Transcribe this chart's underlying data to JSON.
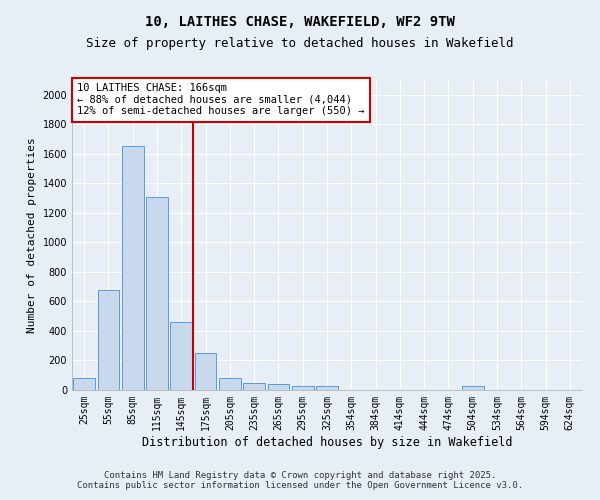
{
  "title": "10, LAITHES CHASE, WAKEFIELD, WF2 9TW",
  "subtitle": "Size of property relative to detached houses in Wakefield",
  "xlabel": "Distribution of detached houses by size in Wakefield",
  "ylabel": "Number of detached properties",
  "bar_labels": [
    "25sqm",
    "55sqm",
    "85sqm",
    "115sqm",
    "145sqm",
    "175sqm",
    "205sqm",
    "235sqm",
    "265sqm",
    "295sqm",
    "325sqm",
    "354sqm",
    "384sqm",
    "414sqm",
    "444sqm",
    "474sqm",
    "504sqm",
    "534sqm",
    "564sqm",
    "594sqm",
    "624sqm"
  ],
  "bar_values": [
    80,
    680,
    1650,
    1310,
    460,
    250,
    80,
    50,
    40,
    25,
    25,
    0,
    0,
    0,
    0,
    0,
    30,
    0,
    0,
    0,
    0
  ],
  "bar_color": "#c9d9ed",
  "bar_edge_color": "#5b9bd5",
  "red_line_index": 5,
  "red_line_color": "#cc0000",
  "annotation_line1": "10 LAITHES CHASE: 166sqm",
  "annotation_line2": "← 88% of detached houses are smaller (4,044)",
  "annotation_line3": "12% of semi-detached houses are larger (550) →",
  "annotation_box_color": "#cc0000",
  "ylim": [
    0,
    2100
  ],
  "yticks": [
    0,
    200,
    400,
    600,
    800,
    1000,
    1200,
    1400,
    1600,
    1800,
    2000
  ],
  "background_color": "#e8eef5",
  "plot_background_color": "#e8eef5",
  "footer_text": "Contains HM Land Registry data © Crown copyright and database right 2025.\nContains public sector information licensed under the Open Government Licence v3.0.",
  "title_fontsize": 10,
  "subtitle_fontsize": 9,
  "xlabel_fontsize": 8.5,
  "ylabel_fontsize": 8,
  "tick_fontsize": 7,
  "annotation_fontsize": 7.5,
  "footer_fontsize": 6.5
}
